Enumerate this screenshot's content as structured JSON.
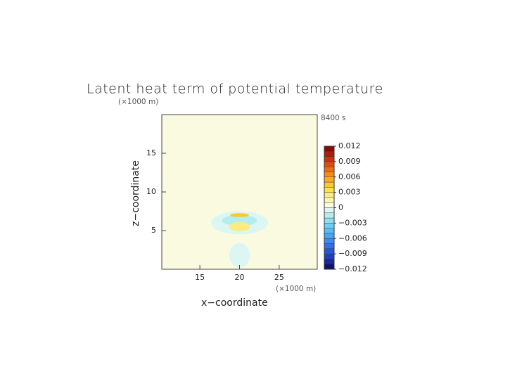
{
  "chart_data": {
    "type": "contour",
    "title": "Latent heat term of potential temperature",
    "y_unit": "(×1000 m)",
    "x_unit": "(×1000 m)",
    "time_label": "8400 s",
    "xlabel": "x−coordinate",
    "ylabel": "z−coordinate",
    "xlim": [
      10.2,
      29.8
    ],
    "ylim": [
      0,
      20
    ],
    "xticks": [
      15,
      20,
      25
    ],
    "yticks": [
      5,
      10,
      15
    ],
    "background_value": 0,
    "regions": [
      {
        "x": 20,
        "z": 6,
        "rx": 3.6,
        "rz": 1.5,
        "value": -0.0005
      },
      {
        "x": 20,
        "z": 1.8,
        "rx": 1.3,
        "rz": 1.6,
        "value": -0.0005
      },
      {
        "x": 20,
        "z": 6.3,
        "rx": 2.2,
        "rz": 0.7,
        "value": -0.0015
      },
      {
        "x": 20,
        "z": 5.5,
        "rx": 1.3,
        "rz": 0.6,
        "value": 0.0025
      },
      {
        "x": 20,
        "z": 7,
        "rx": 1.2,
        "rz": 0.25,
        "value": 0.0045
      }
    ],
    "colorbar": {
      "clim": [
        -0.012,
        0.012
      ],
      "colors": [
        "#10106e",
        "#1a2a9a",
        "#2040c0",
        "#2856d8",
        "#3070e8",
        "#3a8af0",
        "#48a4f4",
        "#58bcf6",
        "#6ed0f4",
        "#8ee0f0",
        "#b4ecf0",
        "#dcf6f4",
        "#fafae0",
        "#fbf4b0",
        "#fcec80",
        "#fce050",
        "#fcc830",
        "#fcac20",
        "#f88c18",
        "#f06c14",
        "#e04c10",
        "#cc300c",
        "#b01c0a",
        "#8c0a08"
      ],
      "ticks": [
        0.012,
        0.009,
        0.006,
        0.003,
        0,
        {
          "value": -0.003,
          "label": "−0.003"
        },
        {
          "value": -0.006,
          "label": "−0.006"
        },
        {
          "value": -0.009,
          "label": "−0.009"
        },
        {
          "value": -0.012,
          "label": "−0.012"
        }
      ]
    }
  }
}
